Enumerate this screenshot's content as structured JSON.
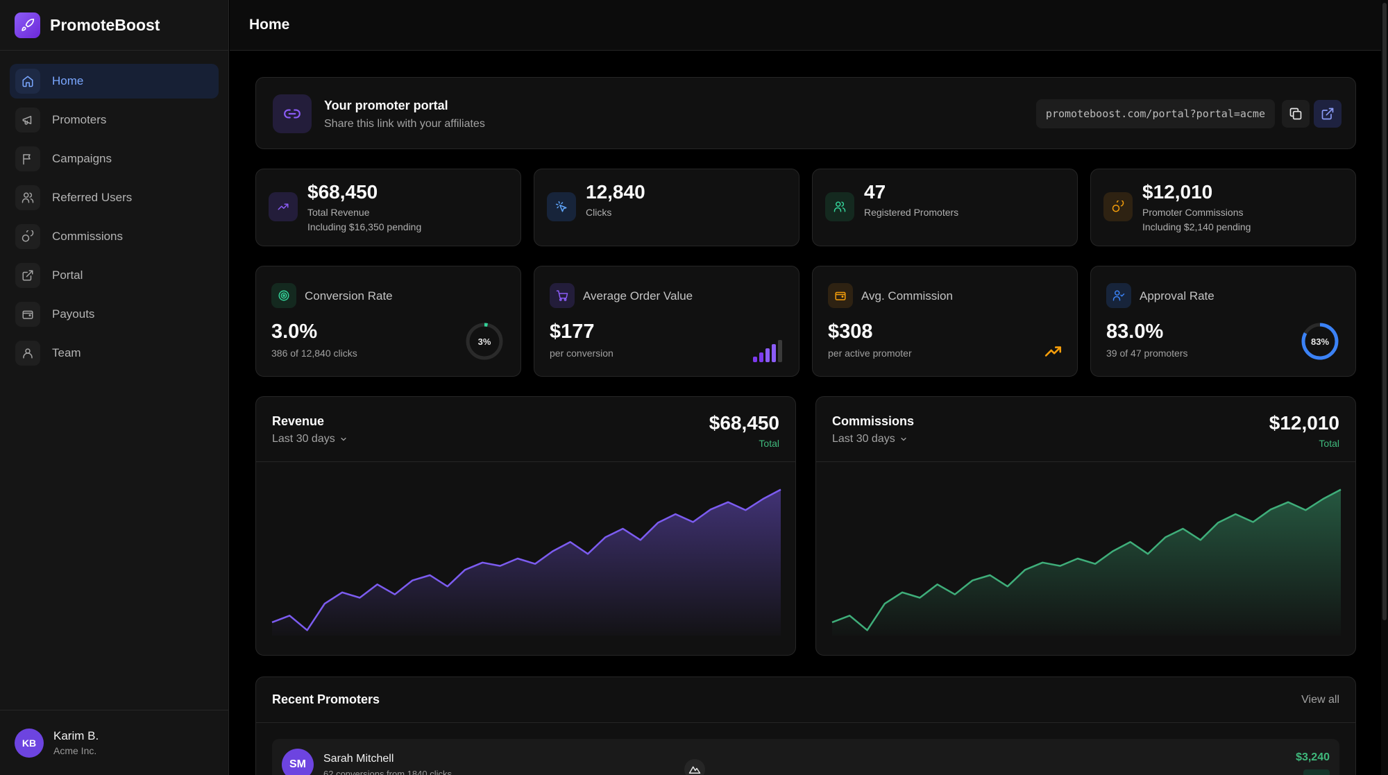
{
  "brand": {
    "name": "PromoteBoost",
    "icon": "rocket-icon"
  },
  "nav": [
    {
      "label": "Home",
      "icon": "home-icon",
      "active": true
    },
    {
      "label": "Promoters",
      "icon": "megaphone-icon"
    },
    {
      "label": "Campaigns",
      "icon": "flag-icon"
    },
    {
      "label": "Referred Users",
      "icon": "users-icon"
    },
    {
      "label": "Commissions",
      "icon": "coins-icon"
    },
    {
      "label": "Portal",
      "icon": "external-link-icon"
    },
    {
      "label": "Payouts",
      "icon": "wallet-icon"
    },
    {
      "label": "Team",
      "icon": "team-icon"
    }
  ],
  "user": {
    "initials": "KB",
    "name": "Karim B.",
    "org": "Acme Inc."
  },
  "header": {
    "title": "Home"
  },
  "portal": {
    "title": "Your promoter portal",
    "subtitle": "Share this link with your affiliates",
    "url": "promoteboost.com/portal?portal=acme"
  },
  "kpis": [
    {
      "value": "$68,450",
      "label": "Total Revenue",
      "sub": "Including $16,350 pending",
      "icon": "trending-up-icon",
      "color": "#8b5cf6"
    },
    {
      "value": "12,840",
      "label": "Clicks",
      "sub": "",
      "icon": "cursor-click-icon",
      "color": "#60a5fa"
    },
    {
      "value": "47",
      "label": "Registered Promoters",
      "sub": "",
      "icon": "users-icon",
      "color": "#34d399"
    },
    {
      "value": "$12,010",
      "label": "Promoter Commissions",
      "sub": "Including $2,140 pending",
      "icon": "coins-icon",
      "color": "#f59e0b"
    }
  ],
  "metrics": [
    {
      "label": "Conversion Rate",
      "value": "3.0%",
      "sub": "386 of 12,840 clicks",
      "icon": "target-icon",
      "color": "#34d399",
      "ring_text": "3%",
      "ring_fraction": 0.03
    },
    {
      "label": "Average Order Value",
      "value": "$177",
      "sub": "per conversion",
      "icon": "cart-icon",
      "color": "#8b5cf6"
    },
    {
      "label": "Avg. Commission",
      "value": "$308",
      "sub": "per active promoter",
      "icon": "wallet-icon",
      "color": "#f59e0b"
    },
    {
      "label": "Approval Rate",
      "value": "83.0%",
      "sub": "39 of 47 promoters",
      "icon": "user-check-icon",
      "color": "#3b82f6",
      "ring_text": "83%",
      "ring_fraction": 0.83
    }
  ],
  "charts": {
    "revenue": {
      "title": "Revenue",
      "range": "Last 30 days",
      "total": "$68,450",
      "total_label": "Total",
      "color": "#7c5cf0"
    },
    "commissions": {
      "title": "Commissions",
      "range": "Last 30 days",
      "total": "$12,010",
      "total_label": "Total",
      "color": "#3fae7a"
    }
  },
  "chart_data": [
    {
      "type": "area",
      "name": "Revenue",
      "x": [
        1,
        2,
        3,
        4,
        5,
        6,
        7,
        8,
        9,
        10,
        11,
        12,
        13,
        14,
        15,
        16,
        17,
        18,
        19,
        20,
        21,
        22,
        23,
        24,
        25,
        26,
        27,
        28,
        29,
        30
      ],
      "values": [
        20,
        30,
        8,
        48,
        65,
        57,
        77,
        62,
        83,
        91,
        74,
        99,
        110,
        105,
        116,
        108,
        127,
        141,
        123,
        148,
        161,
        144,
        170,
        183,
        171,
        190,
        201,
        189,
        206,
        220
      ],
      "ylim": [
        0,
        230
      ]
    },
    {
      "type": "area",
      "name": "Commissions",
      "x": [
        1,
        2,
        3,
        4,
        5,
        6,
        7,
        8,
        9,
        10,
        11,
        12,
        13,
        14,
        15,
        16,
        17,
        18,
        19,
        20,
        21,
        22,
        23,
        24,
        25,
        26,
        27,
        28,
        29,
        30
      ],
      "values": [
        20,
        30,
        8,
        48,
        65,
        57,
        77,
        62,
        83,
        91,
        74,
        99,
        110,
        105,
        116,
        108,
        127,
        141,
        123,
        148,
        161,
        144,
        170,
        183,
        171,
        190,
        201,
        189,
        206,
        220
      ],
      "ylim": [
        0,
        230
      ]
    }
  ],
  "recent": {
    "title": "Recent Promoters",
    "view_all": "View all",
    "rows": [
      {
        "initials": "SM",
        "name": "Sarah Mitchell",
        "sub": "62 conversions from 1840 clicks",
        "amount": "$3,240"
      }
    ]
  }
}
